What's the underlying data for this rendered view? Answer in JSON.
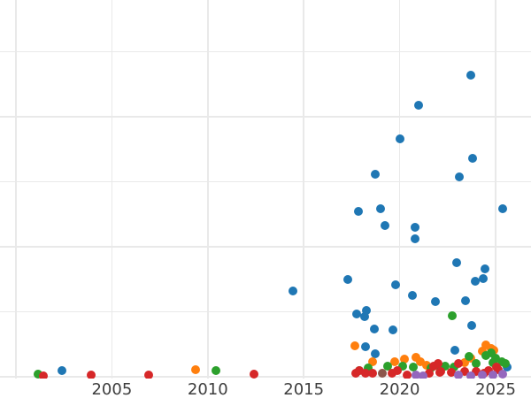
{
  "chart_data": {
    "type": "scatter",
    "title": "",
    "xlabel": "",
    "ylabel": "",
    "legend": "none",
    "grid": "on",
    "grid_color": "#e9e9e9",
    "background_color": "#ffffff",
    "tick_label_color": "#3d3d3d",
    "x_axis": {
      "tick_labels": [
        "2005",
        "2010",
        "2015",
        "2020",
        "2025"
      ],
      "tick_years": [
        2005,
        2010,
        2015,
        2020,
        2025
      ],
      "gridline_years": [
        2000,
        2005,
        2010,
        2015,
        2020,
        2025
      ],
      "visible_range": [
        1999.2,
        2026.8
      ]
    },
    "y_axis": {
      "tick_labels": [],
      "note": "y tick labels cropped out of view; values in gridline units (1 unit = one gridline spacing, 0 at bottom gridline)",
      "gridline_units": [
        0,
        1,
        2,
        3,
        4,
        5
      ],
      "visible_range": [
        0,
        5.8
      ]
    },
    "series": [
      {
        "name": "blue",
        "color": "#1f77b4",
        "points": [
          [
            2002.38,
            0.09
          ],
          [
            2014.44,
            1.32
          ],
          [
            2017.28,
            1.5
          ],
          [
            2017.77,
            0.97
          ],
          [
            2017.84,
            2.54
          ],
          [
            2018.19,
            0.92
          ],
          [
            2018.23,
            0.46
          ],
          [
            2018.27,
            1.02
          ],
          [
            2018.67,
            0.73
          ],
          [
            2018.71,
            0.35
          ],
          [
            2018.74,
            3.11
          ],
          [
            2018.99,
            2.59
          ],
          [
            2019.23,
            2.33
          ],
          [
            2019.66,
            0.72
          ],
          [
            2019.8,
            1.41
          ],
          [
            2020.01,
            3.66
          ],
          [
            2020.65,
            1.25
          ],
          [
            2020.79,
            2.3
          ],
          [
            2020.8,
            2.12
          ],
          [
            2020.97,
            4.18
          ],
          [
            2021.85,
            1.16
          ],
          [
            2022.88,
            0.41
          ],
          [
            2022.96,
            1.76
          ],
          [
            2023.11,
            3.07
          ],
          [
            2023.41,
            1.17
          ],
          [
            2023.69,
            4.64
          ],
          [
            2023.77,
            0.79
          ],
          [
            2023.79,
            3.36
          ],
          [
            2023.93,
            1.47
          ],
          [
            2024.35,
            1.51
          ],
          [
            2024.43,
            1.66
          ],
          [
            2025.37,
            2.59
          ],
          [
            2025.61,
            0.15
          ]
        ]
      },
      {
        "name": "orange",
        "color": "#ff7f0e",
        "points": [
          [
            2009.38,
            0.11
          ],
          [
            2017.65,
            0.48
          ],
          [
            2018.6,
            0.23
          ],
          [
            2019.73,
            0.23
          ],
          [
            2020.23,
            0.27
          ],
          [
            2020.85,
            0.3
          ],
          [
            2021.08,
            0.23
          ],
          [
            2021.39,
            0.18
          ],
          [
            2023.39,
            0.22
          ],
          [
            2023.69,
            0.29
          ],
          [
            2024.31,
            0.39
          ],
          [
            2024.51,
            0.49
          ],
          [
            2024.77,
            0.43
          ],
          [
            2024.91,
            0.41
          ]
        ]
      },
      {
        "name": "green",
        "color": "#2ca02c",
        "points": [
          [
            2001.14,
            0.04
          ],
          [
            2010.44,
            0.09
          ],
          [
            2017.9,
            0.1
          ],
          [
            2018.37,
            0.13
          ],
          [
            2019.37,
            0.16
          ],
          [
            2020.15,
            0.16
          ],
          [
            2020.69,
            0.15
          ],
          [
            2021.62,
            0.14
          ],
          [
            2022.15,
            0.14
          ],
          [
            2022.39,
            0.17
          ],
          [
            2022.74,
            0.94
          ],
          [
            2022.85,
            0.15
          ],
          [
            2023.62,
            0.31
          ],
          [
            2024.0,
            0.2
          ],
          [
            2024.51,
            0.33
          ],
          [
            2024.77,
            0.37
          ],
          [
            2024.85,
            0.22
          ],
          [
            2025.0,
            0.28
          ],
          [
            2025.31,
            0.23
          ],
          [
            2025.51,
            0.2
          ]
        ]
      },
      {
        "name": "red",
        "color": "#d62728",
        "points": [
          [
            2001.44,
            0.02
          ],
          [
            2003.93,
            0.03
          ],
          [
            2006.93,
            0.03
          ],
          [
            2012.42,
            0.04
          ],
          [
            2017.7,
            0.06
          ],
          [
            2017.88,
            0.1
          ],
          [
            2018.22,
            0.05
          ],
          [
            2018.6,
            0.06
          ],
          [
            2019.59,
            0.05
          ],
          [
            2019.9,
            0.1
          ],
          [
            2020.38,
            0.03
          ],
          [
            2021.54,
            0.05
          ],
          [
            2021.77,
            0.16
          ],
          [
            2022.0,
            0.2
          ],
          [
            2022.08,
            0.07
          ],
          [
            2022.15,
            0.08
          ],
          [
            2022.69,
            0.07
          ],
          [
            2023.08,
            0.2
          ],
          [
            2023.39,
            0.08
          ],
          [
            2024.0,
            0.08
          ],
          [
            2024.39,
            0.06
          ],
          [
            2024.62,
            0.1
          ],
          [
            2025.06,
            0.15
          ],
          [
            2025.15,
            0.11
          ]
        ]
      },
      {
        "name": "purple",
        "color": "#9467bd",
        "points": [
          [
            2020.85,
            0.03
          ],
          [
            2021.23,
            0.01
          ],
          [
            2023.08,
            0.03
          ],
          [
            2023.69,
            0.02
          ],
          [
            2024.31,
            0.03
          ],
          [
            2024.85,
            0.03
          ],
          [
            2025.38,
            0.04
          ]
        ]
      },
      {
        "name": "brown",
        "color": "#8c564b",
        "points": [
          [
            2019.11,
            0.06
          ]
        ]
      }
    ]
  }
}
